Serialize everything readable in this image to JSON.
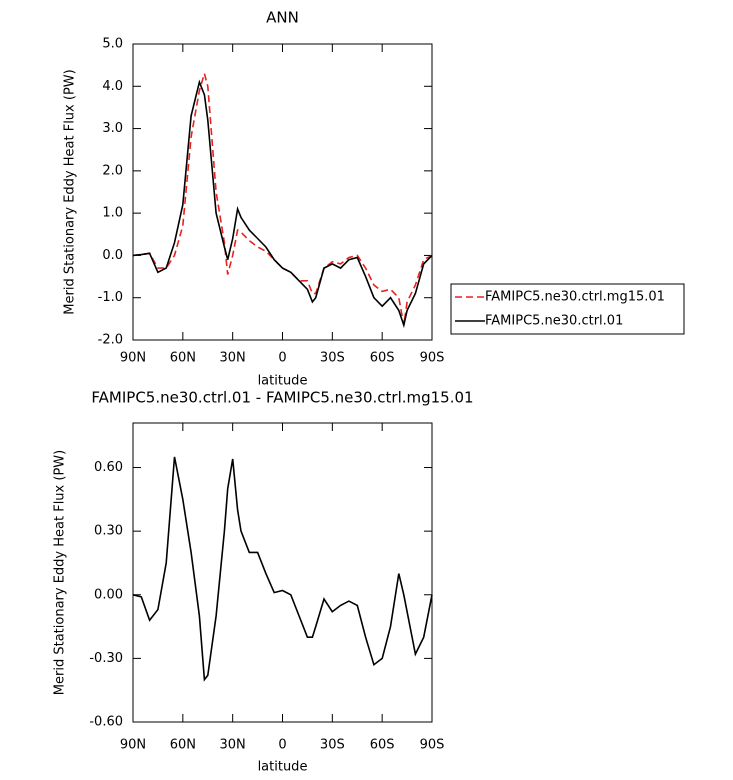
{
  "chart_data": [
    {
      "type": "line",
      "title": "ANN",
      "xlabel": "latitude",
      "ylabel": "Merid Stationary Eddy Heat Flux (PW)",
      "x": [
        90,
        85,
        80,
        75,
        70,
        65,
        60,
        55,
        50,
        47,
        45,
        40,
        35,
        33,
        30,
        27,
        25,
        20,
        15,
        10,
        5,
        0,
        -5,
        -10,
        -15,
        -18,
        -20,
        -25,
        -30,
        -35,
        -40,
        -45,
        -50,
        -55,
        -60,
        -65,
        -70,
        -73,
        -75,
        -80,
        -85,
        -90
      ],
      "series": [
        {
          "name": "FAMIPC5.ne30.ctrl.mg15.01",
          "color": "#e8221e",
          "linestyle": "dashed",
          "values": [
            0,
            0.02,
            0.05,
            -0.3,
            -0.3,
            0.0,
            0.7,
            2.8,
            3.9,
            4.3,
            4.0,
            1.5,
            0.3,
            -0.45,
            0.0,
            0.6,
            0.55,
            0.35,
            0.2,
            0.1,
            -0.1,
            -0.3,
            -0.4,
            -0.6,
            -0.6,
            -0.9,
            -0.9,
            -0.3,
            -0.15,
            -0.2,
            -0.05,
            0.0,
            -0.3,
            -0.7,
            -0.85,
            -0.8,
            -1.0,
            -1.65,
            -1.1,
            -0.7,
            -0.1,
            0
          ]
        },
        {
          "name": "FAMIPC5.ne30.ctrl.01",
          "color": "#000000",
          "linestyle": "solid",
          "values": [
            0,
            0.02,
            0.05,
            -0.4,
            -0.3,
            0.3,
            1.2,
            3.3,
            4.1,
            3.8,
            3.2,
            1.0,
            0.2,
            -0.1,
            0.4,
            1.1,
            0.9,
            0.6,
            0.4,
            0.2,
            -0.1,
            -0.3,
            -0.4,
            -0.6,
            -0.8,
            -1.1,
            -1.0,
            -0.3,
            -0.2,
            -0.3,
            -0.1,
            -0.05,
            -0.5,
            -1.0,
            -1.2,
            -1.0,
            -1.3,
            -1.65,
            -1.3,
            -0.9,
            -0.2,
            0
          ]
        }
      ],
      "xlim": [
        90,
        -90
      ],
      "xticks": [
        {
          "value": 90,
          "label": "90N"
        },
        {
          "value": 60,
          "label": "60N"
        },
        {
          "value": 30,
          "label": "30N"
        },
        0,
        {
          "value": -30,
          "label": "30S"
        },
        {
          "value": -60,
          "label": "60S"
        },
        {
          "value": -90,
          "label": "90S"
        }
      ],
      "ylim": [
        -2,
        5
      ],
      "yticks": [
        {
          "value": 5,
          "label": "5.0"
        },
        {
          "value": 4,
          "label": "4.0"
        },
        {
          "value": 3,
          "label": "3.0"
        },
        {
          "value": 2,
          "label": "2.0"
        },
        {
          "value": 1,
          "label": "1.0"
        },
        {
          "value": 0,
          "label": "0.0"
        },
        {
          "value": -1,
          "label": "-1.0"
        },
        {
          "value": -2,
          "label": "-2.0"
        }
      ],
      "legend": "right"
    },
    {
      "type": "line",
      "title": "FAMIPC5.ne30.ctrl.01 - FAMIPC5.ne30.ctrl.mg15.01",
      "xlabel": "latitude",
      "ylabel": "Merid Stationary Eddy Heat Flux (PW)",
      "x": [
        90,
        85,
        80,
        75,
        70,
        65,
        60,
        55,
        50,
        47,
        45,
        40,
        35,
        33,
        30,
        27,
        25,
        20,
        15,
        10,
        5,
        0,
        -5,
        -10,
        -15,
        -18,
        -20,
        -25,
        -30,
        -35,
        -40,
        -45,
        -50,
        -55,
        -60,
        -65,
        -70,
        -73,
        -75,
        -80,
        -85,
        -90
      ],
      "series": [
        {
          "color": "#000000",
          "linestyle": "solid",
          "values": [
            0,
            -0.01,
            -0.12,
            -0.07,
            0.15,
            0.65,
            0.45,
            0.2,
            -0.1,
            -0.4,
            -0.38,
            -0.1,
            0.3,
            0.5,
            0.64,
            0.4,
            0.3,
            0.2,
            0.2,
            0.1,
            0.01,
            0.02,
            0.0,
            -0.1,
            -0.2,
            -0.2,
            -0.15,
            -0.02,
            -0.08,
            -0.05,
            -0.03,
            -0.05,
            -0.2,
            -0.33,
            -0.3,
            -0.15,
            0.1,
            0.0,
            -0.08,
            -0.28,
            -0.2,
            0
          ]
        }
      ],
      "xlim": [
        90,
        -90
      ],
      "xticks": [
        {
          "value": 90,
          "label": "90N"
        },
        {
          "value": 60,
          "label": "60N"
        },
        {
          "value": 30,
          "label": "30N"
        },
        0,
        {
          "value": -30,
          "label": "30S"
        },
        {
          "value": -60,
          "label": "60S"
        },
        {
          "value": -90,
          "label": "90S"
        }
      ],
      "ylim": [
        -0.6,
        0.81
      ],
      "yticks": [
        {
          "value": 0.6,
          "label": "0.60"
        },
        {
          "value": 0.3,
          "label": "0.30"
        },
        {
          "value": 0,
          "label": "0.00"
        },
        {
          "value": -0.3,
          "label": "-0.30"
        },
        {
          "value": -0.6,
          "label": "-0.60"
        }
      ]
    }
  ]
}
